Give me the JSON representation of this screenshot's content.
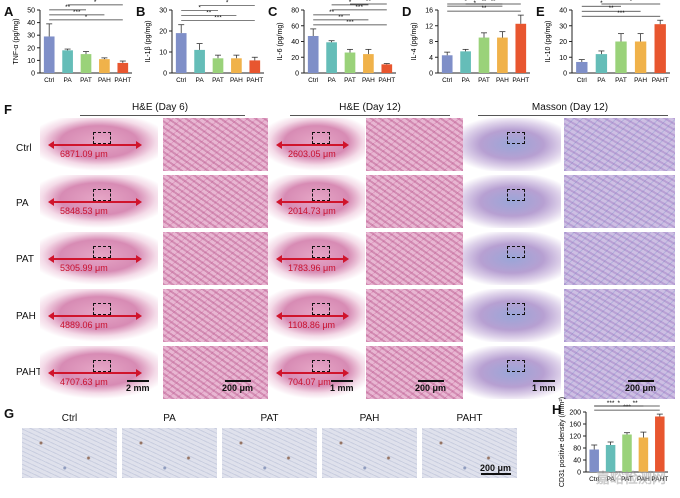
{
  "panels": {
    "A": "A",
    "B": "B",
    "C": "C",
    "D": "D",
    "E": "E",
    "F": "F",
    "G": "G",
    "H": "H"
  },
  "colors": {
    "Ctrl": "#7f8fc8",
    "PA": "#65bdb8",
    "PAT": "#9ad27a",
    "PAH": "#f0b24a",
    "PAHT": "#e8562f"
  },
  "chart_data": [
    {
      "type": "bar",
      "ylabel": "TNF-α (pg/mg)",
      "categories": [
        "Ctrl",
        "PA",
        "PAT",
        "PAH",
        "PAHT"
      ],
      "values": [
        29,
        18,
        15,
        11,
        8
      ],
      "errors": [
        10,
        1,
        2,
        1,
        1.5
      ],
      "ylim": [
        0,
        50
      ],
      "yticks": [
        0,
        10,
        20,
        30,
        40,
        50
      ],
      "signif": [
        "*",
        "***",
        "**",
        "*"
      ]
    },
    {
      "type": "bar",
      "ylabel": "IL-1β (pg/mg)",
      "categories": [
        "Ctrl",
        "PA",
        "PAT",
        "PAH",
        "PAHT"
      ],
      "values": [
        19,
        11,
        7,
        7,
        6
      ],
      "errors": [
        4,
        3,
        1.5,
        1.5,
        1.5
      ],
      "ylim": [
        0,
        30
      ],
      "yticks": [
        0,
        10,
        20,
        30
      ],
      "signif": [
        "***",
        "**",
        "*",
        "*"
      ]
    },
    {
      "type": "bar",
      "ylabel": "IL-6 (pg/mg)",
      "categories": [
        "Ctrl",
        "PA",
        "PAT",
        "PAH",
        "PAHT"
      ],
      "values": [
        47,
        39,
        26,
        24,
        11
      ],
      "errors": [
        9,
        2,
        4,
        6,
        1
      ],
      "ylim": [
        0,
        80
      ],
      "yticks": [
        0,
        20,
        40,
        60,
        80
      ],
      "signif": [
        "***",
        "**",
        "**",
        "***",
        "*",
        "**"
      ]
    },
    {
      "type": "bar",
      "ylabel": "IL-4 (pg/mg)",
      "categories": [
        "Ctrl",
        "PA",
        "PAT",
        "PAH",
        "PAHT"
      ],
      "values": [
        4.5,
        5.5,
        9,
        9,
        12.5
      ],
      "errors": [
        0.8,
        0.5,
        1.2,
        1.5,
        2.2
      ],
      "ylim": [
        0,
        16
      ],
      "yticks": [
        0,
        4,
        8,
        12,
        16
      ],
      "signif": [
        "**",
        "*",
        "*",
        "**",
        "**"
      ]
    },
    {
      "type": "bar",
      "ylabel": "IL-10 (pg/mg)",
      "categories": [
        "Ctrl",
        "PA",
        "PAT",
        "PAH",
        "PAHT"
      ],
      "values": [
        7,
        12,
        20,
        20,
        31
      ],
      "errors": [
        1.5,
        2,
        5,
        5,
        2.5
      ],
      "ylim": [
        0,
        40
      ],
      "yticks": [
        0,
        10,
        20,
        30,
        40
      ],
      "signif": [
        "***",
        "**",
        "*",
        "*"
      ]
    },
    {
      "type": "bar",
      "ylabel": "CD31 positive density (/mm²)",
      "categories": [
        "Ctrl",
        "PA",
        "PAT",
        "PAH",
        "PAHT"
      ],
      "values": [
        75,
        90,
        125,
        115,
        185
      ],
      "errors": [
        15,
        10,
        6,
        18,
        8
      ],
      "ylim": [
        0,
        200
      ],
      "yticks": [
        0,
        40,
        80,
        120,
        160,
        200
      ],
      "signif": [
        "***",
        "*",
        "***",
        "**"
      ]
    }
  ],
  "sections": {
    "he6": "H&E (Day 6)",
    "he12": "H&E (Day 12)",
    "masson12": "Masson (Day 12)"
  },
  "rows": [
    "Ctrl",
    "PA",
    "PAT",
    "PAH",
    "PAHT"
  ],
  "measures_day6": [
    "6871.09 μm",
    "5848.53 μm",
    "5305.99 μm",
    "4889.06 μm",
    "4707.63 μm"
  ],
  "measures_day12": [
    "2603.05 μm",
    "2014.73 μm",
    "1783.96 μm",
    "1108.86 μm",
    "704.07 μm"
  ],
  "scales": {
    "s1": "2 mm",
    "s2": "200 μm",
    "s3": "1 mm",
    "s4": "200 μm",
    "s5": "1 mm",
    "s6": "200 μm",
    "s7": "200 μm"
  },
  "ihc_labels": [
    "Ctrl",
    "PA",
    "PAT",
    "PAH",
    "PAHT"
  ],
  "watermark": "嘉峪检测网"
}
